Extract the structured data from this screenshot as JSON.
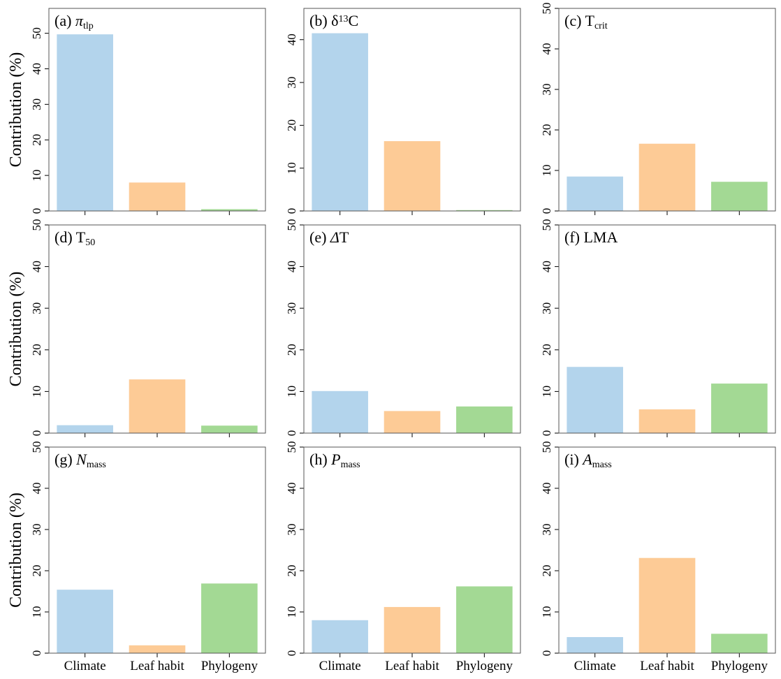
{
  "chart_data": [
    {
      "type": "bar",
      "title": [
        {
          "text": "(a) "
        },
        {
          "text": "π",
          "italic": true
        },
        {
          "text": "tlp",
          "sub": true
        }
      ],
      "y_label": "Contribution (%)",
      "values": [
        49.7,
        8,
        0.5
      ],
      "colors": [
        "#b3d4ec",
        "#fdcb96",
        "#a3d994"
      ],
      "ylim": [
        0,
        57
      ],
      "yticks": [
        0,
        10,
        20,
        30,
        40,
        50
      ]
    },
    {
      "type": "bar",
      "title": [
        {
          "text": "(b) δ"
        },
        {
          "text": "13",
          "sup": true
        },
        {
          "text": "C"
        }
      ],
      "values": [
        41.5,
        16.3,
        0.2
      ],
      "colors": [
        "#b3d4ec",
        "#fdcb96",
        "#a3d994"
      ],
      "ylim": [
        0,
        47.3
      ],
      "yticks": [
        0,
        10,
        20,
        30,
        40
      ]
    },
    {
      "type": "bar",
      "title": [
        {
          "text": "(c) T"
        },
        {
          "text": "crit",
          "sub": true
        }
      ],
      "values": [
        8.5,
        16.6,
        7.2
      ],
      "colors": [
        "#b3d4ec",
        "#fdcb96",
        "#a3d994"
      ],
      "ylim": [
        0,
        50
      ],
      "yticks": [
        0,
        10,
        20,
        30,
        40,
        50
      ]
    },
    {
      "type": "bar",
      "title": [
        {
          "text": "(d) T"
        },
        {
          "text": "50",
          "sub": true
        }
      ],
      "y_label": "Contribution (%)",
      "values": [
        1.9,
        12.9,
        1.8
      ],
      "colors": [
        "#b3d4ec",
        "#fdcb96",
        "#a3d994"
      ],
      "ylim": [
        0,
        50
      ],
      "yticks": [
        0,
        10,
        20,
        30,
        40,
        50
      ]
    },
    {
      "type": "bar",
      "title": [
        {
          "text": "(e) "
        },
        {
          "text": "Δ",
          "italic": true
        },
        {
          "text": "T"
        }
      ],
      "values": [
        10.1,
        5.3,
        6.4
      ],
      "colors": [
        "#b3d4ec",
        "#fdcb96",
        "#a3d994"
      ],
      "ylim": [
        0,
        50
      ],
      "yticks": [
        0,
        10,
        20,
        30,
        40,
        50
      ]
    },
    {
      "type": "bar",
      "title": [
        {
          "text": "(f) LMA"
        }
      ],
      "values": [
        15.9,
        5.7,
        11.9
      ],
      "colors": [
        "#b3d4ec",
        "#fdcb96",
        "#a3d994"
      ],
      "ylim": [
        0,
        50
      ],
      "yticks": [
        0,
        10,
        20,
        30,
        40,
        50
      ]
    },
    {
      "type": "bar",
      "title": [
        {
          "text": "(g) "
        },
        {
          "text": "N",
          "italic": true
        },
        {
          "text": "mass",
          "sub": true
        }
      ],
      "y_label": "Contribution (%)",
      "categories": [
        "Climate",
        "Leaf habit",
        "Phylogeny"
      ],
      "values": [
        15.4,
        1.9,
        16.9
      ],
      "colors": [
        "#b3d4ec",
        "#fdcb96",
        "#a3d994"
      ],
      "ylim": [
        0,
        50
      ],
      "yticks": [
        0,
        10,
        20,
        30,
        40,
        50
      ]
    },
    {
      "type": "bar",
      "title": [
        {
          "text": "(h) "
        },
        {
          "text": "P",
          "italic": true
        },
        {
          "text": "mass",
          "sub": true
        }
      ],
      "categories": [
        "Climate",
        "Leaf habit",
        "Phylogeny"
      ],
      "values": [
        8,
        11.2,
        16.2
      ],
      "colors": [
        "#b3d4ec",
        "#fdcb96",
        "#a3d994"
      ],
      "ylim": [
        0,
        50
      ],
      "yticks": [
        0,
        10,
        20,
        30,
        40,
        50
      ]
    },
    {
      "type": "bar",
      "title": [
        {
          "text": "(i) "
        },
        {
          "text": "A",
          "italic": true
        },
        {
          "text": "mass",
          "sub": true
        }
      ],
      "categories": [
        "Climate",
        "Leaf habit",
        "Phylogeny"
      ],
      "values": [
        3.9,
        23.1,
        4.7
      ],
      "colors": [
        "#b3d4ec",
        "#fdcb96",
        "#a3d994"
      ],
      "ylim": [
        0,
        50
      ],
      "yticks": [
        0,
        10,
        20,
        30,
        40,
        50
      ]
    }
  ]
}
